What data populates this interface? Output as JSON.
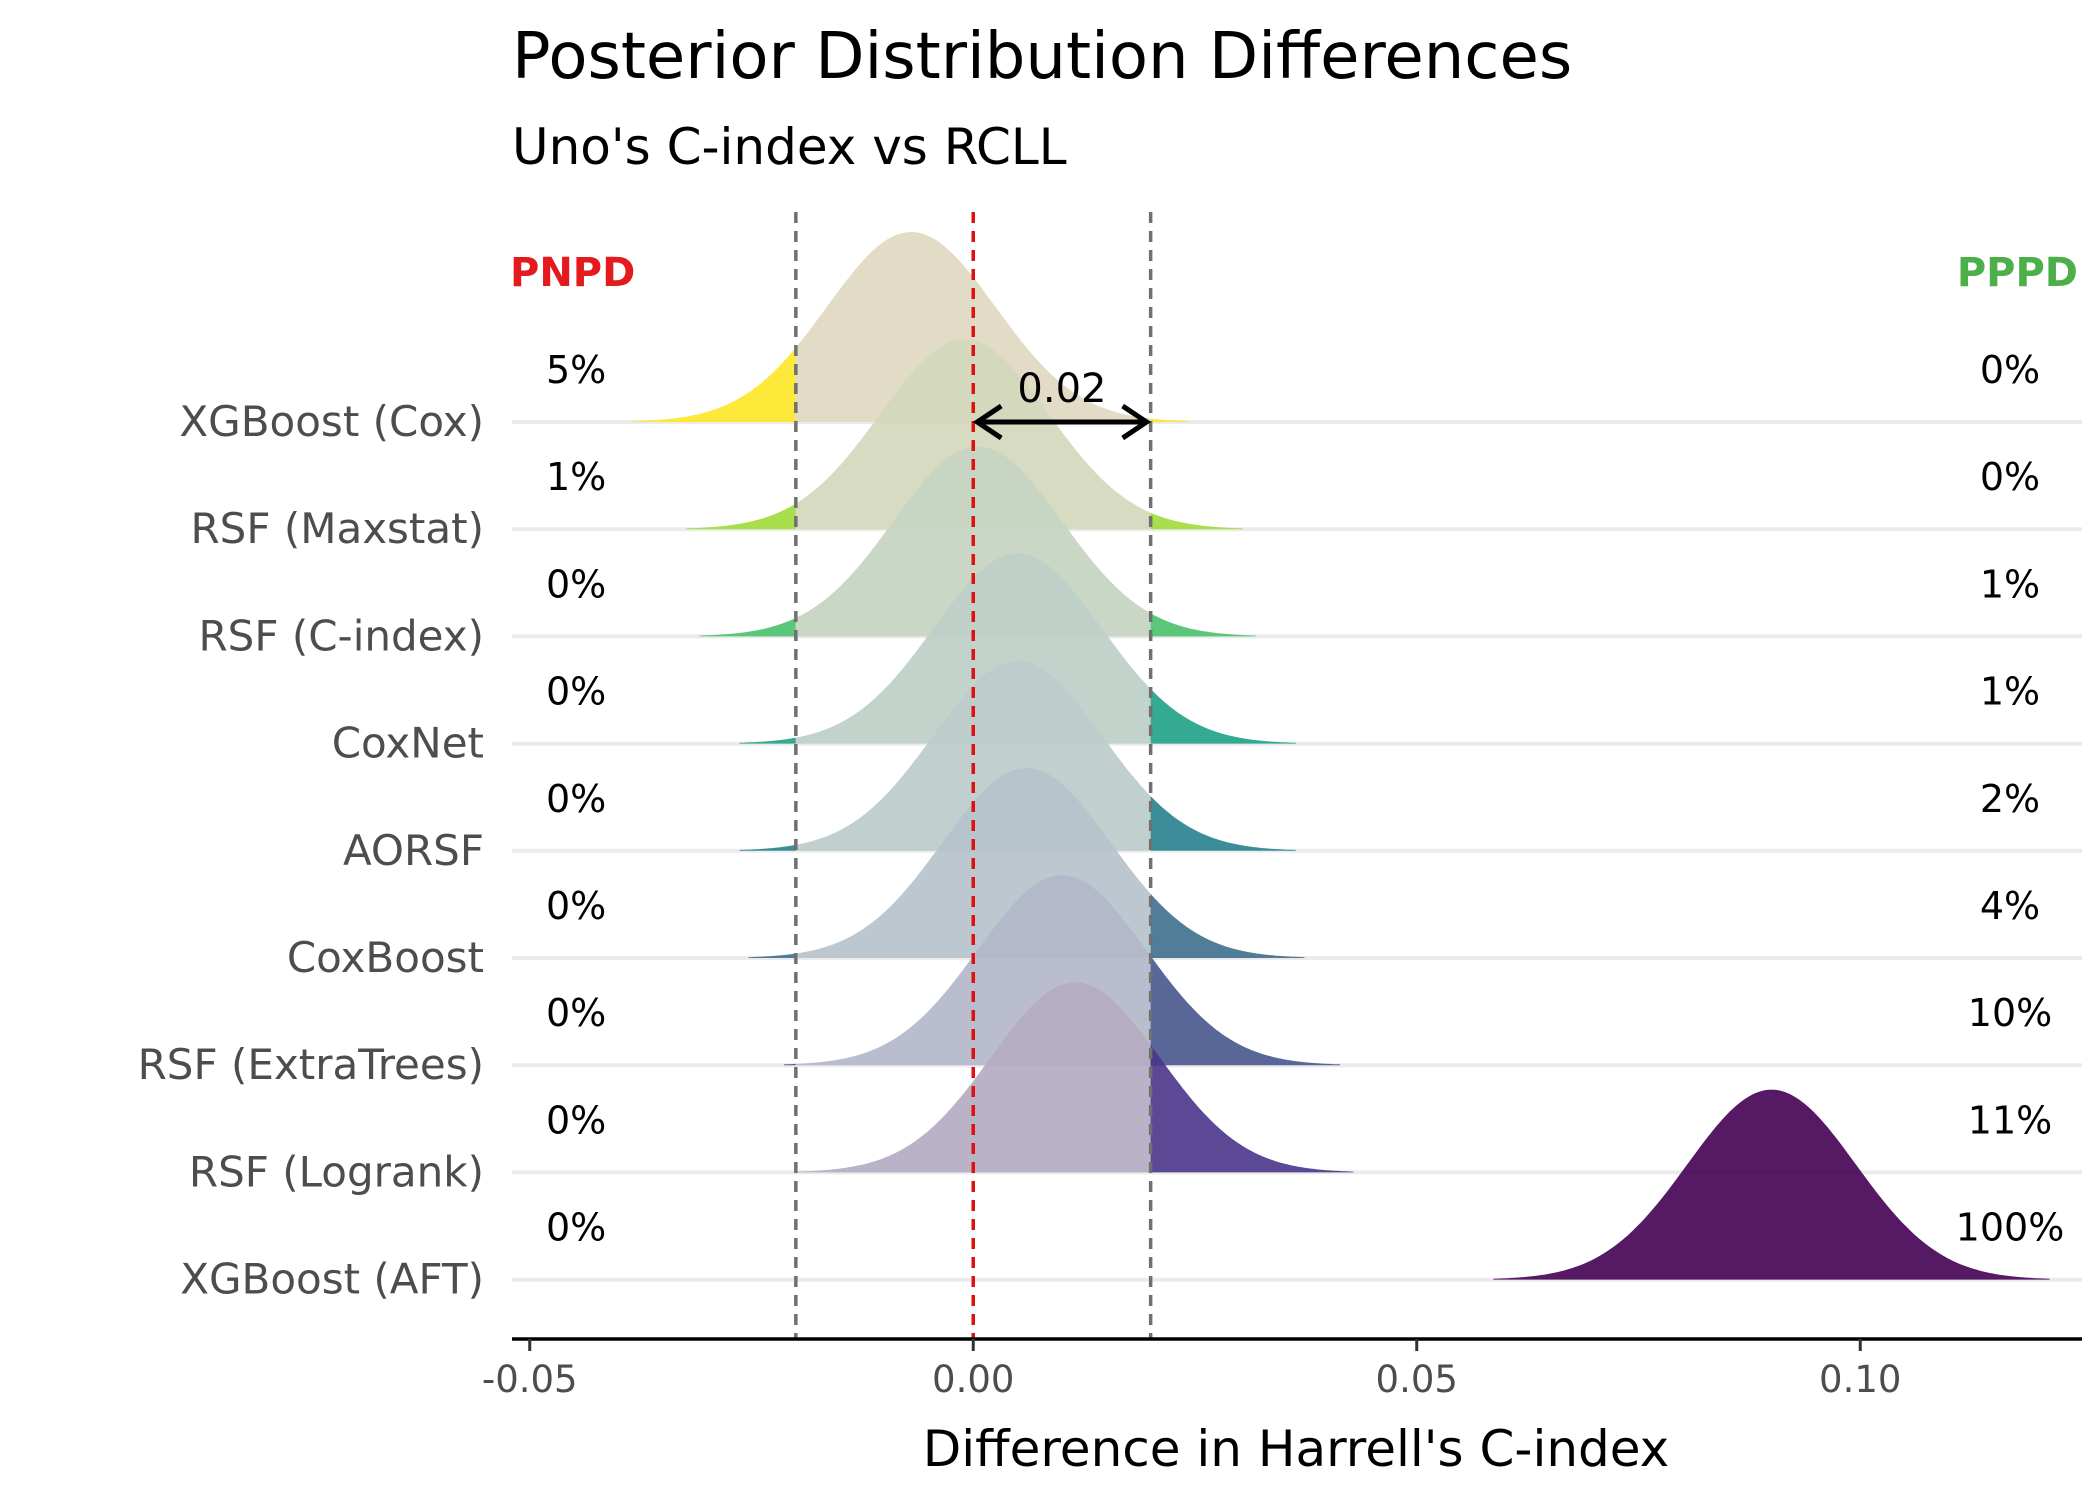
{
  "chart_data": {
    "type": "ridgeline",
    "title": "Posterior Distribution Differences",
    "subtitle": "Uno's C-index vs RCLL",
    "xlabel": "Difference in Harrell's C-index",
    "xlim": [
      -0.052,
      0.125
    ],
    "x_ticks": [
      {
        "value": -0.05,
        "label": "-0.05"
      },
      {
        "value": 0.0,
        "label": "0.00"
      },
      {
        "value": 0.05,
        "label": "0.05"
      },
      {
        "value": 0.1,
        "label": "0.10"
      }
    ],
    "reference_line": 0.0,
    "rope": [
      -0.02,
      0.02
    ],
    "rope_annotation": "0.02",
    "left_header": "PNPD",
    "right_header": "PPPD",
    "left_header_color": "#e41a1c",
    "right_header_color": "#4daf4a",
    "reference_color": "#dd1111",
    "grid": true,
    "legend": "none",
    "series": [
      {
        "name": "XGBoost (Cox)",
        "peak": -0.007,
        "sd": 0.0095,
        "pnpd": "5%",
        "pppd": "0%",
        "tail_color": "#fde725",
        "body_color": "#e0d9c2"
      },
      {
        "name": "RSF (Maxstat)",
        "peak": -0.001,
        "sd": 0.0095,
        "pnpd": "1%",
        "pppd": "0%",
        "tail_color": "#a0da39",
        "body_color": "#d3d8bd"
      },
      {
        "name": "RSF (C-index)",
        "peak": 0.0005,
        "sd": 0.0095,
        "pnpd": "0%",
        "pppd": "1%",
        "tail_color": "#4ac16d",
        "body_color": "#c6d4c2"
      },
      {
        "name": "CoxNet",
        "peak": 0.005,
        "sd": 0.0095,
        "pnpd": "0%",
        "pppd": "1%",
        "tail_color": "#1fa187",
        "body_color": "#bdd0c8"
      },
      {
        "name": "AORSF",
        "peak": 0.005,
        "sd": 0.0095,
        "pnpd": "0%",
        "pppd": "2%",
        "tail_color": "#26828e",
        "body_color": "#bccccb"
      },
      {
        "name": "CoxBoost",
        "peak": 0.006,
        "sd": 0.0095,
        "pnpd": "0%",
        "pppd": "4%",
        "tail_color": "#3e6f8d",
        "body_color": "#b7c3cb"
      },
      {
        "name": "RSF (ExtraTrees)",
        "peak": 0.01,
        "sd": 0.0095,
        "pnpd": "0%",
        "pppd": "10%",
        "tail_color": "#46568d",
        "body_color": "#b4b8c9"
      },
      {
        "name": "RSF (Logrank)",
        "peak": 0.0115,
        "sd": 0.0095,
        "pnpd": "0%",
        "pppd": "11%",
        "tail_color": "#4a3589",
        "body_color": "#b5acc2"
      },
      {
        "name": "XGBoost (AFT)",
        "peak": 0.09,
        "sd": 0.0095,
        "pnpd": "0%",
        "pppd": "100%",
        "tail_color": "#440154",
        "body_color": "#5e2a70"
      }
    ]
  }
}
